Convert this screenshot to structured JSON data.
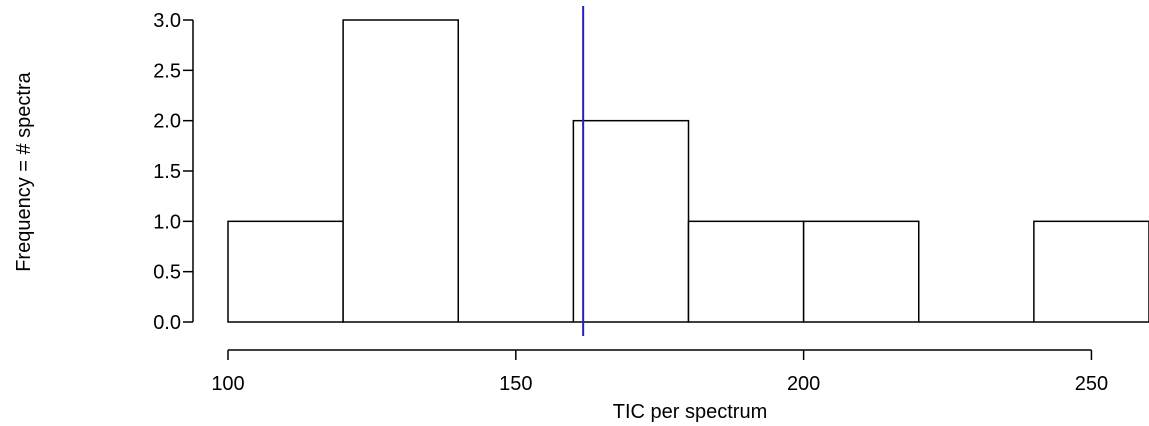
{
  "chart_data": {
    "type": "histogram",
    "xlabel": "TIC per spectrum",
    "ylabel": "Frequency = # spectra",
    "bins": [
      {
        "from": 100,
        "to": 120,
        "count": 1
      },
      {
        "from": 120,
        "to": 140,
        "count": 3
      },
      {
        "from": 140,
        "to": 160,
        "count": 0
      },
      {
        "from": 160,
        "to": 180,
        "count": 2
      },
      {
        "from": 180,
        "to": 200,
        "count": 1
      },
      {
        "from": 200,
        "to": 220,
        "count": 1
      },
      {
        "from": 220,
        "to": 240,
        "count": 0
      },
      {
        "from": 240,
        "to": 260,
        "count": 1
      }
    ],
    "xlim": [
      100,
      260
    ],
    "ylim": [
      0,
      3
    ],
    "x_ticks": [
      100,
      150,
      200,
      250
    ],
    "y_ticks": [
      0.0,
      0.5,
      1.0,
      1.5,
      2.0,
      2.5,
      3.0
    ],
    "reference_line": {
      "x": 161.7,
      "color": "#2222bb"
    },
    "grid": false,
    "legend": "none"
  }
}
